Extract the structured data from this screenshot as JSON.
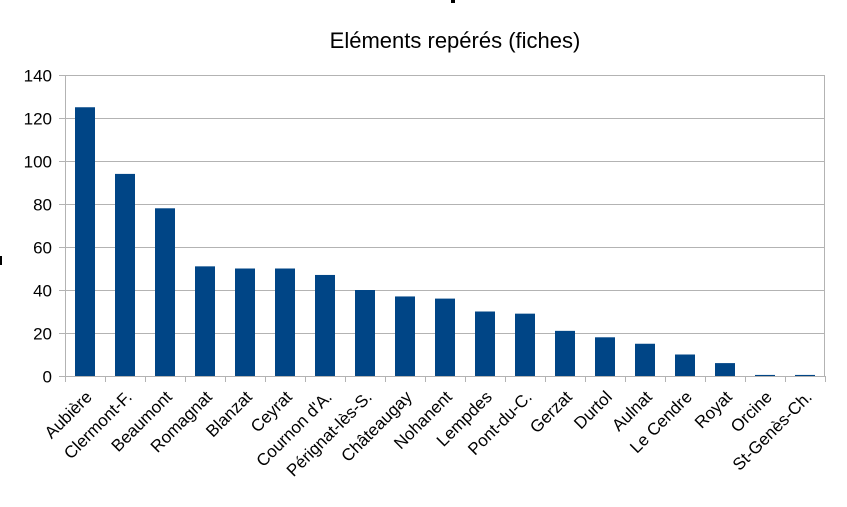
{
  "chart_data": {
    "type": "bar",
    "title": "Eléments repérés (fiches)",
    "xlabel": "",
    "ylabel": "",
    "categories": [
      "Aubière",
      "Clermont-F.",
      "Beaumont",
      "Romagnat",
      "Blanzat",
      "Ceyrat",
      "Cournon d'A.",
      "Pérignat-lès-S.",
      "Châteaugay",
      "Nohanent",
      "Lempdes",
      "Pont-du-C.",
      "Gerzat",
      "Durtol",
      "Aulnat",
      "Le Cendre",
      "Royat",
      "Orcine",
      "St-Genès-Ch."
    ],
    "values": [
      125,
      94,
      78,
      51,
      50,
      50,
      47,
      40,
      37,
      36,
      30,
      29,
      21,
      18,
      15,
      10,
      6,
      0.5,
      0.5
    ],
    "ylim": [
      0,
      140
    ],
    "yticks": [
      0,
      20,
      40,
      60,
      80,
      100,
      120,
      140
    ],
    "grid": true,
    "legend": "none",
    "bar_color": "#004586"
  }
}
